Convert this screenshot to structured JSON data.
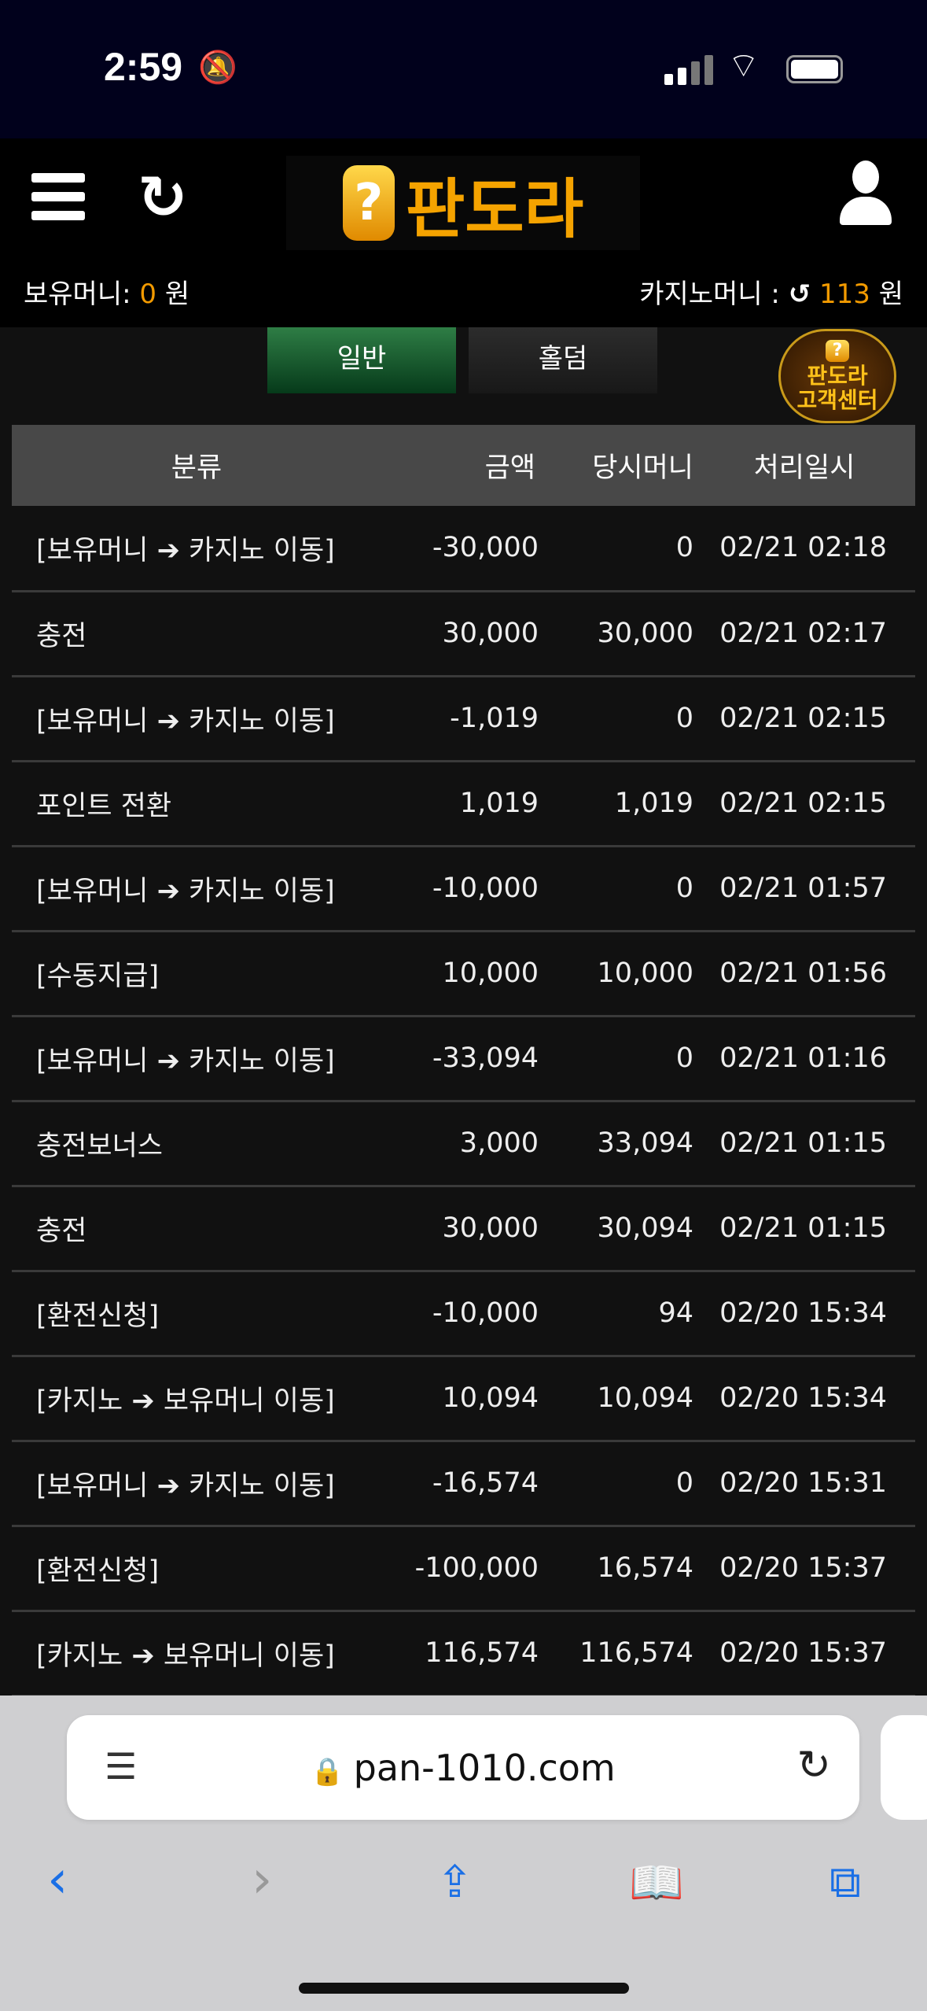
{
  "status_bar": {
    "time": "2:59"
  },
  "header": {
    "logo_text": "판도라",
    "balance_label": "보유머니:",
    "balance_value": "0",
    "balance_unit": "원",
    "casino_label": "카지노머니 :",
    "casino_value": "113",
    "casino_unit": "원"
  },
  "tabs": [
    {
      "label": "일반",
      "active": true
    },
    {
      "label": "홀덤",
      "active": false
    }
  ],
  "table": {
    "columns": [
      "분류",
      "금액",
      "당시머니",
      "처리일시"
    ],
    "rows": [
      [
        "[보유머니 ➔ 카지노 이동]",
        "-30,000",
        "0",
        "02/21 02:18"
      ],
      [
        "충전",
        "30,000",
        "30,000",
        "02/21 02:17"
      ],
      [
        "[보유머니 ➔ 카지노 이동]",
        "-1,019",
        "0",
        "02/21 02:15"
      ],
      [
        "포인트 전환",
        "1,019",
        "1,019",
        "02/21 02:15"
      ],
      [
        "[보유머니 ➔ 카지노 이동]",
        "-10,000",
        "0",
        "02/21 01:57"
      ],
      [
        "[수동지급]",
        "10,000",
        "10,000",
        "02/21 01:56"
      ],
      [
        "[보유머니 ➔ 카지노 이동]",
        "-33,094",
        "0",
        "02/21 01:16"
      ],
      [
        "충전보너스",
        "3,000",
        "33,094",
        "02/21 01:15"
      ],
      [
        "충전",
        "30,000",
        "30,094",
        "02/21 01:15"
      ],
      [
        "[환전신청]",
        "-10,000",
        "94",
        "02/20 15:34"
      ],
      [
        "[카지노 ➔ 보유머니 이동]",
        "10,094",
        "10,094",
        "02/20 15:34"
      ],
      [
        "[보유머니 ➔ 카지노 이동]",
        "-16,574",
        "0",
        "02/20 15:31"
      ],
      [
        "[환전신청]",
        "-100,000",
        "16,574",
        "02/20 15:37"
      ],
      [
        "[카지노 ➔ 보유머니 이동]",
        "116,574",
        "116,574",
        "02/20 15:37"
      ]
    ]
  },
  "support_badge": {
    "line1": "판도라",
    "line2": "고객센터"
  },
  "browser": {
    "url": "pan-1010.com",
    "accent": "#1a6fe6"
  }
}
